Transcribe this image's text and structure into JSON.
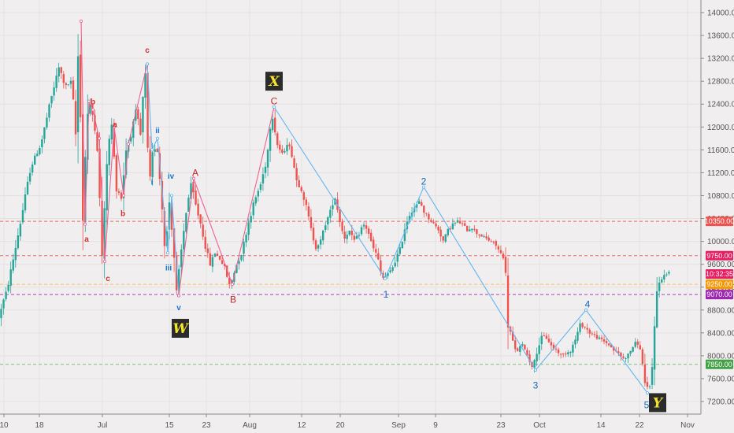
{
  "chart_data": {
    "type": "candlestick",
    "symbol": "BTCUSD",
    "y_axis": {
      "ticks": [
        "14000.00",
        "13600.00",
        "13200.00",
        "12800.00",
        "12400.00",
        "12000.00",
        "11600.00",
        "11200.00",
        "10800.00",
        "10400.00",
        "10000.00",
        "9600.00",
        "9200.00",
        "8800.00",
        "8400.00",
        "8000.00",
        "7600.00",
        "7200.00"
      ],
      "ylim": [
        7100,
        14150
      ]
    },
    "x_axis": {
      "ticks": [
        "10",
        "18",
        "Jul",
        "15",
        "23",
        "Aug",
        "12",
        "20",
        "Sep",
        "9",
        "23",
        "Oct",
        "14",
        "22",
        "Nov"
      ]
    },
    "horizontal_levels": [
      {
        "label": "10350.00",
        "value": 10350,
        "color": "#ef5350",
        "badge_color": "#ef5350"
      },
      {
        "label": "9750.00",
        "value": 9750,
        "color": "#ef5350",
        "badge_color": "#e91e63"
      },
      {
        "label": "9250.00",
        "value": 9250,
        "color": "#ffb74d",
        "badge_color": "#ff9800"
      },
      {
        "label": "9070.00",
        "value": 9070,
        "color": "#9c27b0",
        "badge_color": "#9c27b0"
      },
      {
        "label": "7850.00",
        "value": 7850,
        "color": "#66bb6a",
        "badge_color": "#43a047"
      }
    ],
    "price_badge": {
      "label": "10:32:35",
      "value": 9430,
      "color": "#e91e63"
    },
    "candle_colors": {
      "up": "#26a69a",
      "down": "#ef5350"
    },
    "anchor_path": [
      [
        0,
        8650
      ],
      [
        6,
        8900
      ],
      [
        12,
        9150
      ],
      [
        20,
        9700
      ],
      [
        30,
        10400
      ],
      [
        42,
        11300
      ],
      [
        55,
        11700
      ],
      [
        68,
        12500
      ],
      [
        78,
        13050
      ],
      [
        86,
        12700
      ],
      [
        94,
        12800
      ],
      [
        100,
        11700
      ],
      [
        103,
        13850
      ],
      [
        108,
        10300
      ],
      [
        113,
        12150
      ],
      [
        118,
        12400
      ],
      [
        126,
        11800
      ],
      [
        133,
        9650
      ],
      [
        139,
        11500
      ],
      [
        145,
        12050
      ],
      [
        150,
        11000
      ],
      [
        157,
        10750
      ],
      [
        163,
        11600
      ],
      [
        170,
        11900
      ],
      [
        176,
        12300
      ],
      [
        182,
        11800
      ],
      [
        187,
        13150
      ],
      [
        192,
        10800
      ],
      [
        197,
        11550
      ],
      [
        202,
        11700
      ],
      [
        206,
        11100
      ],
      [
        210,
        10400
      ],
      [
        213,
        9800
      ],
      [
        218,
        10700
      ],
      [
        223,
        10000
      ],
      [
        227,
        9050
      ],
      [
        233,
        9800
      ],
      [
        240,
        10600
      ],
      [
        246,
        11000
      ],
      [
        252,
        10600
      ],
      [
        258,
        10300
      ],
      [
        264,
        9900
      ],
      [
        270,
        9600
      ],
      [
        276,
        9800
      ],
      [
        282,
        9700
      ],
      [
        288,
        9550
      ],
      [
        295,
        9200
      ],
      [
        302,
        9550
      ],
      [
        310,
        9800
      ],
      [
        318,
        10300
      ],
      [
        326,
        10700
      ],
      [
        334,
        11000
      ],
      [
        342,
        11450
      ],
      [
        348,
        12300
      ],
      [
        355,
        11700
      ],
      [
        362,
        11500
      ],
      [
        368,
        11750
      ],
      [
        374,
        11500
      ],
      [
        380,
        11050
      ],
      [
        386,
        10900
      ],
      [
        392,
        10600
      ],
      [
        398,
        10200
      ],
      [
        404,
        9900
      ],
      [
        410,
        10000
      ],
      [
        416,
        10300
      ],
      [
        422,
        10500
      ],
      [
        428,
        10800
      ],
      [
        434,
        10400
      ],
      [
        440,
        10050
      ],
      [
        446,
        10200
      ],
      [
        452,
        10000
      ],
      [
        458,
        10100
      ],
      [
        464,
        10300
      ],
      [
        470,
        10200
      ],
      [
        476,
        9900
      ],
      [
        482,
        9750
      ],
      [
        488,
        9350
      ],
      [
        494,
        9400
      ],
      [
        500,
        9500
      ],
      [
        506,
        9700
      ],
      [
        512,
        9900
      ],
      [
        518,
        10300
      ],
      [
        524,
        10500
      ],
      [
        530,
        10600
      ],
      [
        536,
        10700
      ],
      [
        542,
        10500
      ],
      [
        548,
        10400
      ],
      [
        554,
        10300
      ],
      [
        560,
        10200
      ],
      [
        566,
        10000
      ],
      [
        572,
        10200
      ],
      [
        578,
        10300
      ],
      [
        584,
        10350
      ],
      [
        590,
        10300
      ],
      [
        596,
        10200
      ],
      [
        602,
        10250
      ],
      [
        608,
        10150
      ],
      [
        614,
        10100
      ],
      [
        620,
        10050
      ],
      [
        626,
        10000
      ],
      [
        632,
        9950
      ],
      [
        638,
        9800
      ],
      [
        644,
        9700
      ],
      [
        648,
        8600
      ],
      [
        653,
        8300
      ],
      [
        658,
        8050
      ],
      [
        663,
        8150
      ],
      [
        668,
        8200
      ],
      [
        674,
        7950
      ],
      [
        680,
        7800
      ],
      [
        686,
        8150
      ],
      [
        692,
        8350
      ],
      [
        698,
        8300
      ],
      [
        704,
        8150
      ],
      [
        710,
        8100
      ],
      [
        716,
        8000
      ],
      [
        722,
        8050
      ],
      [
        728,
        8100
      ],
      [
        734,
        8300
      ],
      [
        740,
        8550
      ],
      [
        746,
        8500
      ],
      [
        752,
        8400
      ],
      [
        758,
        8350
      ],
      [
        764,
        8300
      ],
      [
        770,
        8250
      ],
      [
        776,
        8200
      ],
      [
        782,
        8100
      ],
      [
        788,
        8050
      ],
      [
        794,
        7950
      ],
      [
        800,
        8000
      ],
      [
        806,
        8150
      ],
      [
        812,
        8250
      ],
      [
        818,
        8000
      ],
      [
        822,
        7500
      ],
      [
        826,
        7400
      ],
      [
        830,
        7500
      ],
      [
        834,
        8600
      ],
      [
        838,
        9200
      ],
      [
        842,
        9350
      ],
      [
        846,
        9400
      ],
      [
        851,
        9450
      ]
    ],
    "wave_lines": [
      {
        "color": "#f06292",
        "points": [
          [
            103,
            13850
          ],
          [
            108,
            10300
          ],
          [
            113,
            12450
          ],
          [
            118,
            12300
          ],
          [
            126,
            11800
          ],
          [
            133,
            9650
          ],
          [
            145,
            12000
          ],
          [
            157,
            10800
          ],
          [
            163,
            11700
          ],
          [
            187,
            13100
          ]
        ]
      },
      {
        "color": "#64b5f6",
        "points": [
          [
            187,
            13100
          ],
          [
            193,
            11600
          ],
          [
            200,
            11800
          ],
          [
            213,
            9800
          ],
          [
            218,
            10800
          ],
          [
            227,
            9050
          ]
        ]
      },
      {
        "color": "#f06292",
        "points": [
          [
            227,
            9050
          ],
          [
            246,
            11100
          ],
          [
            295,
            9250
          ],
          [
            348,
            12350
          ]
        ]
      },
      {
        "color": "#64b5f6",
        "points": [
          [
            348,
            12350
          ],
          [
            489,
            9350
          ],
          [
            538,
            10950
          ],
          [
            680,
            7750
          ],
          [
            744,
            8800
          ],
          [
            822,
            7350
          ]
        ]
      }
    ],
    "wave_labels": [
      {
        "text": "a",
        "price": 10050,
        "x": 110,
        "color": "#d32f2f",
        "size": "small"
      },
      {
        "text": "b",
        "price": 12450,
        "x": 118,
        "color": "#d32f2f",
        "size": "small"
      },
      {
        "text": "c",
        "price": 9360,
        "x": 137,
        "color": "#d32f2f",
        "size": "small"
      },
      {
        "text": "a",
        "price": 12050,
        "x": 146,
        "color": "#d32f2f",
        "size": "small"
      },
      {
        "text": "b",
        "price": 10500,
        "x": 156,
        "color": "#d32f2f",
        "size": "small"
      },
      {
        "text": "c",
        "price": 13350,
        "x": 187,
        "color": "#d32f2f",
        "size": "small"
      },
      {
        "text": "ii",
        "price": 11950,
        "x": 200,
        "color": "#1976d2",
        "size": "small"
      },
      {
        "text": "i",
        "price": 11050,
        "x": 193,
        "color": "#1976d2",
        "size": "small"
      },
      {
        "text": "iv",
        "price": 11150,
        "x": 217,
        "color": "#1976d2",
        "size": "small"
      },
      {
        "text": "iii",
        "price": 9550,
        "x": 214,
        "color": "#1976d2",
        "size": "small"
      },
      {
        "text": "v",
        "price": 8850,
        "x": 227,
        "color": "#1976d2",
        "size": "small"
      },
      {
        "text": "A",
        "price": 11200,
        "x": 248,
        "color": "#c62828",
        "size": "large"
      },
      {
        "text": "B",
        "price": 8980,
        "x": 296,
        "color": "#c62828",
        "size": "large"
      },
      {
        "text": "C",
        "price": 12450,
        "x": 348,
        "color": "#c62828",
        "size": "large"
      },
      {
        "text": "1",
        "price": 9070,
        "x": 490,
        "color": "#1565c0",
        "size": "large"
      },
      {
        "text": "2",
        "price": 11050,
        "x": 538,
        "color": "#1565c0",
        "size": "large"
      },
      {
        "text": "3",
        "price": 7480,
        "x": 680,
        "color": "#1565c0",
        "size": "large"
      },
      {
        "text": "4",
        "price": 8900,
        "x": 746,
        "color": "#1565c0",
        "size": "large"
      },
      {
        "text": "5",
        "price": 7140,
        "x": 821,
        "color": "#1565c0",
        "size": "large"
      }
    ],
    "wave_boxes": [
      {
        "text": "X",
        "price": 12800,
        "x": 348
      },
      {
        "text": "W",
        "price": 8480,
        "x": 229
      },
      {
        "text": "Y",
        "price": 7180,
        "x": 835
      }
    ]
  }
}
